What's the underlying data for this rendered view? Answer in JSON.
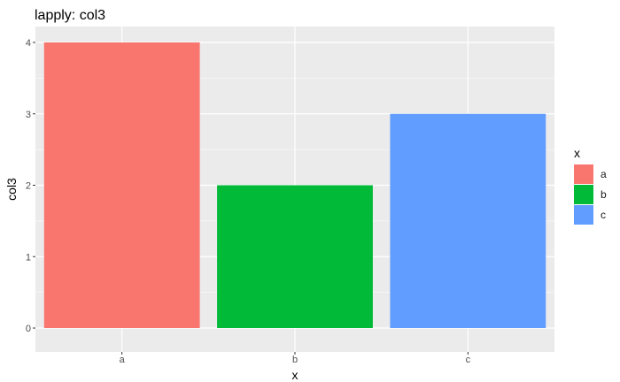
{
  "chart_data": {
    "type": "bar",
    "title": "lapply: col3",
    "xlabel": "x",
    "ylabel": "col3",
    "categories": [
      "a",
      "b",
      "c"
    ],
    "values": [
      4,
      2,
      3
    ],
    "colors": [
      "#F8766D",
      "#00BA38",
      "#619CFF"
    ],
    "ylim": [
      0,
      4
    ],
    "yticks": [
      "0",
      "1",
      "2",
      "3",
      "4"
    ],
    "grid": true,
    "legend": {
      "title": "x",
      "position": "right",
      "entries": [
        "a",
        "b",
        "c"
      ]
    }
  }
}
